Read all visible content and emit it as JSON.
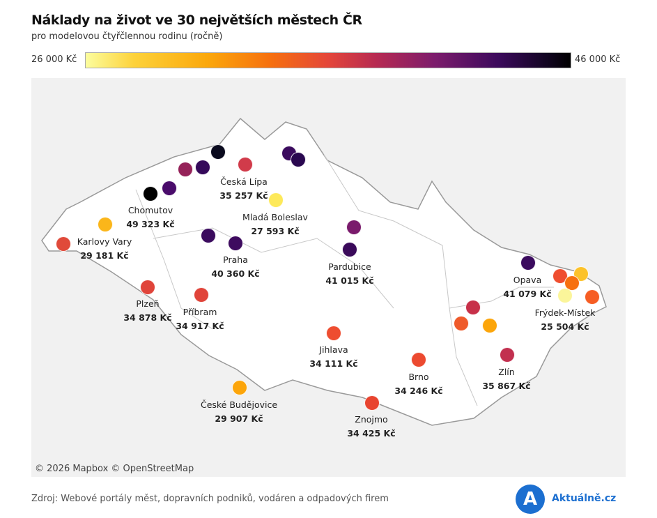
{
  "header": {
    "title": "Náklady na život ve 30 největších městech ČR",
    "subtitle": "pro modelovou čtyřčlennou rodinu (ročně)"
  },
  "legend": {
    "min_label": "26 000 Kč",
    "max_label": "46 000 Kč",
    "min": 26000,
    "max": 46000
  },
  "map": {
    "credit": "© 2026 Mapbox  © OpenStreetMap",
    "cities": [
      {
        "name": "Chomutov",
        "value": "49 323 Kč",
        "color": "#000000"
      },
      {
        "name": "Česká Lípa",
        "value": "35 257 Kč",
        "color": "#d13b4a"
      },
      {
        "name": "Mladá Boleslav",
        "value": "27 593 Kč",
        "color": "#fde95a"
      },
      {
        "name": "Karlovy Vary",
        "value": "29 181 Kč",
        "color": "#e04a3a"
      },
      {
        "name": "Praha",
        "value": "40 360 Kč",
        "color": "#3e0b5f"
      },
      {
        "name": "Pardubice",
        "value": "41 015 Kč",
        "color": "#3a0a5a"
      },
      {
        "name": "Plzeň",
        "value": "34 878 Kč",
        "color": "#e0443a"
      },
      {
        "name": "Příbram",
        "value": "34 917 Kč",
        "color": "#e0443a"
      },
      {
        "name": "Jihlava",
        "value": "34 111 Kč",
        "color": "#ee4d30"
      },
      {
        "name": "Brno",
        "value": "34 246 Kč",
        "color": "#ec4a30"
      },
      {
        "name": "České Budějovice",
        "value": "29 907 Kč",
        "color": "#fca50a"
      },
      {
        "name": "Znojmo",
        "value": "34 425 Kč",
        "color": "#e8442f"
      },
      {
        "name": "Zlín",
        "value": "35 867 Kč",
        "color": "#c2304f"
      },
      {
        "name": "Opava",
        "value": "41 079 Kč",
        "color": "#3b0b5e"
      },
      {
        "name": "Frýdek-Místek",
        "value": "25 504 Kč",
        "color": "#fbf59a"
      }
    ],
    "other_points": [
      {
        "color": "#952259"
      },
      {
        "color": "#35095a"
      },
      {
        "color": "#0a0a1e"
      },
      {
        "color": "#4a0c6b"
      },
      {
        "color": "#fbb61a"
      },
      {
        "color": "#3b0b5e"
      },
      {
        "color": "#2a0850"
      },
      {
        "color": "#7a1b6c"
      },
      {
        "color": "#3b0b5e"
      },
      {
        "color": "#c73049"
      },
      {
        "color": "#ef5a2a"
      },
      {
        "color": "#fca50a"
      },
      {
        "color": "#ef4e2f"
      },
      {
        "color": "#fcc22a"
      },
      {
        "color": "#f7700e"
      },
      {
        "color": "#f65d23"
      }
    ]
  },
  "footer": {
    "source": "Zdroj: Webové portály měst, dopravních podniků, vodáren a odpadových firem",
    "logo_letter": "A",
    "brand": "Aktuálně.cz"
  }
}
